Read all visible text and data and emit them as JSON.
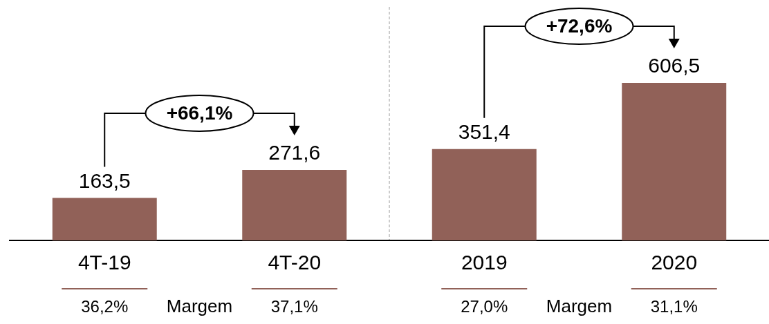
{
  "chart_data": {
    "type": "bar",
    "categories": [
      "4T-19",
      "4T-20",
      "2019",
      "2020"
    ],
    "values": [
      163.5,
      271.6,
      351.4,
      606.5
    ],
    "value_labels": [
      "163,5",
      "271,6",
      "351,4",
      "606,5"
    ],
    "color": "#916158",
    "annotations": [
      "+66,1%",
      "+72,6%",
      "36,2%",
      "Margem",
      "37,1%",
      "27,0%",
      "Margem",
      "31,1%"
    ]
  }
}
